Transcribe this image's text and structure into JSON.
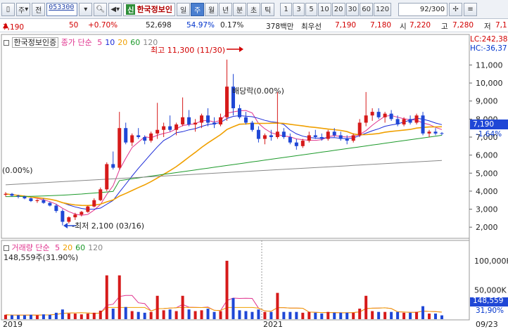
{
  "toolbar": {
    "market_select": "주",
    "quote_button": "전",
    "code": "053300",
    "sin_badge": "신",
    "stock_name": "한국정보인",
    "periods": [
      "일",
      "주",
      "월",
      "년",
      "분",
      "초",
      "틱"
    ],
    "selected_period": "주",
    "intervals": [
      "1",
      "3",
      "5",
      "10",
      "20",
      "30",
      "60",
      "120"
    ],
    "count": "92/300"
  },
  "infobar": {
    "price": "7,190",
    "change": "50",
    "change_pct": "+0.70%",
    "volume": "52,698",
    "ratio1": "54.97%",
    "ratio2": "0.17%",
    "amount": "378백만",
    "best_label": "최우선",
    "best_ask": "7,190",
    "best_bid": "7,180",
    "open_label": "시",
    "open": "7,220",
    "high_label": "고",
    "high": "7,280",
    "low_label": "저",
    "low": "7,1"
  },
  "price_panel": {
    "title": "한국정보인증",
    "ma_label": "종가 단순",
    "ma_periods": [
      "5",
      "10",
      "20",
      "60",
      "120"
    ],
    "ma_colors": [
      "#e0338e",
      "#1a2ad8",
      "#f0a000",
      "#1d9a2b",
      "#888888"
    ],
    "lc": "LC:242,38",
    "hc": "HC:-36,37",
    "yticks": [
      "11,000",
      "10,000",
      "9,000",
      "8,000",
      "7,000",
      "6,000",
      "5,000",
      "4,000",
      "3,000",
      "2,000"
    ],
    "current_price": "7,190",
    "current_pct": "-1.64%",
    "high_annotation": "최고 11,300 (11/30)",
    "low_annotation": "최저 2,100 (03/16)",
    "ex_dividend": "배당락(0.00%)",
    "left_pct": "(0.00%)"
  },
  "volume_panel": {
    "title": "거래량",
    "ma_label": "단순",
    "ma_periods": [
      "5",
      "20",
      "60",
      "120"
    ],
    "current": "148,559주(31.90%)",
    "yticks": [
      "100,000K",
      "50,000K"
    ],
    "current_value": "148,559",
    "current_pct": "31,90%"
  },
  "x_axis": {
    "labels": [
      "2019",
      "2021",
      "09/23"
    ]
  },
  "colors": {
    "up": "#d61a1a",
    "down": "#1f47d6"
  },
  "chart_data": {
    "type": "candlestick",
    "series_price": [
      [
        3800,
        3950,
        3700,
        3850
      ],
      [
        3850,
        3900,
        3700,
        3750
      ],
      [
        3750,
        3800,
        3600,
        3700
      ],
      [
        3700,
        3750,
        3550,
        3600
      ],
      [
        3600,
        3650,
        3400,
        3450
      ],
      [
        3450,
        3550,
        3350,
        3500
      ],
      [
        3500,
        3600,
        3300,
        3350
      ],
      [
        3350,
        3400,
        3150,
        3200
      ],
      [
        3200,
        3300,
        2800,
        2900
      ],
      [
        2900,
        3000,
        2100,
        2300
      ],
      [
        2300,
        2600,
        2200,
        2550
      ],
      [
        2550,
        2800,
        2400,
        2700
      ],
      [
        2700,
        2900,
        2600,
        2850
      ],
      [
        2850,
        3200,
        2800,
        3150
      ],
      [
        3150,
        3600,
        3100,
        3500
      ],
      [
        3500,
        4200,
        3450,
        4100
      ],
      [
        4100,
        5600,
        4000,
        5500
      ],
      [
        5500,
        6200,
        5200,
        5300
      ],
      [
        5300,
        8400,
        5200,
        7500
      ],
      [
        7500,
        7800,
        6600,
        6700
      ],
      [
        6700,
        7200,
        6500,
        7100
      ],
      [
        7100,
        7500,
        6900,
        7000
      ],
      [
        7000,
        7100,
        6600,
        6800
      ],
      [
        6800,
        7300,
        6700,
        7200
      ],
      [
        7200,
        8900,
        6900,
        7400
      ],
      [
        7400,
        7800,
        7000,
        7600
      ],
      [
        7600,
        8200,
        7300,
        7400
      ],
      [
        7400,
        7800,
        7100,
        7700
      ],
      [
        7700,
        9200,
        7600,
        8100
      ],
      [
        8100,
        8500,
        7600,
        7700
      ],
      [
        7700,
        8000,
        7300,
        7800
      ],
      [
        7800,
        8300,
        7500,
        8200
      ],
      [
        8200,
        8600,
        7600,
        7800
      ],
      [
        7800,
        8100,
        7500,
        7700
      ],
      [
        7700,
        8300,
        7600,
        8100
      ],
      [
        8100,
        11300,
        7900,
        9800
      ],
      [
        9800,
        10500,
        8200,
        8600
      ],
      [
        8600,
        8800,
        8000,
        8100
      ],
      [
        8100,
        8400,
        7700,
        7800
      ],
      [
        7800,
        7900,
        7300,
        7400
      ],
      [
        7400,
        7600,
        6700,
        6900
      ],
      [
        6900,
        7200,
        6600,
        7100
      ],
      [
        7100,
        7400,
        6800,
        7000
      ],
      [
        7000,
        9500,
        6900,
        7300
      ],
      [
        7300,
        7500,
        6900,
        7000
      ],
      [
        7000,
        7200,
        6600,
        6700
      ],
      [
        6700,
        6900,
        6300,
        6500
      ],
      [
        6500,
        6900,
        6400,
        6800
      ],
      [
        6800,
        7300,
        6700,
        7100
      ],
      [
        7100,
        7400,
        6900,
        7000
      ],
      [
        7000,
        7200,
        6800,
        6900
      ],
      [
        6900,
        7400,
        6800,
        7300
      ],
      [
        7300,
        7500,
        7000,
        7100
      ],
      [
        7100,
        7300,
        6800,
        6900
      ],
      [
        6900,
        7100,
        6600,
        6800
      ],
      [
        6800,
        7200,
        6700,
        7100
      ],
      [
        7100,
        8000,
        7000,
        7800
      ],
      [
        7800,
        9500,
        7600,
        8200
      ],
      [
        8200,
        8600,
        7900,
        8400
      ],
      [
        8400,
        8600,
        8000,
        8100
      ],
      [
        8100,
        8400,
        7800,
        8300
      ],
      [
        8300,
        8500,
        7900,
        8000
      ],
      [
        8000,
        8200,
        7600,
        7700
      ],
      [
        7700,
        8100,
        7600,
        8000
      ],
      [
        8000,
        8200,
        7700,
        7800
      ],
      [
        7800,
        8300,
        7700,
        8200
      ],
      [
        8200,
        8400,
        7100,
        7200
      ],
      [
        7200,
        7400,
        7000,
        7300
      ],
      [
        7300,
        7500,
        7100,
        7200
      ],
      [
        7220,
        7280,
        7100,
        7190
      ]
    ],
    "ma5_color": "#e0338e",
    "ymin": 1500,
    "ymax": 12500
  }
}
